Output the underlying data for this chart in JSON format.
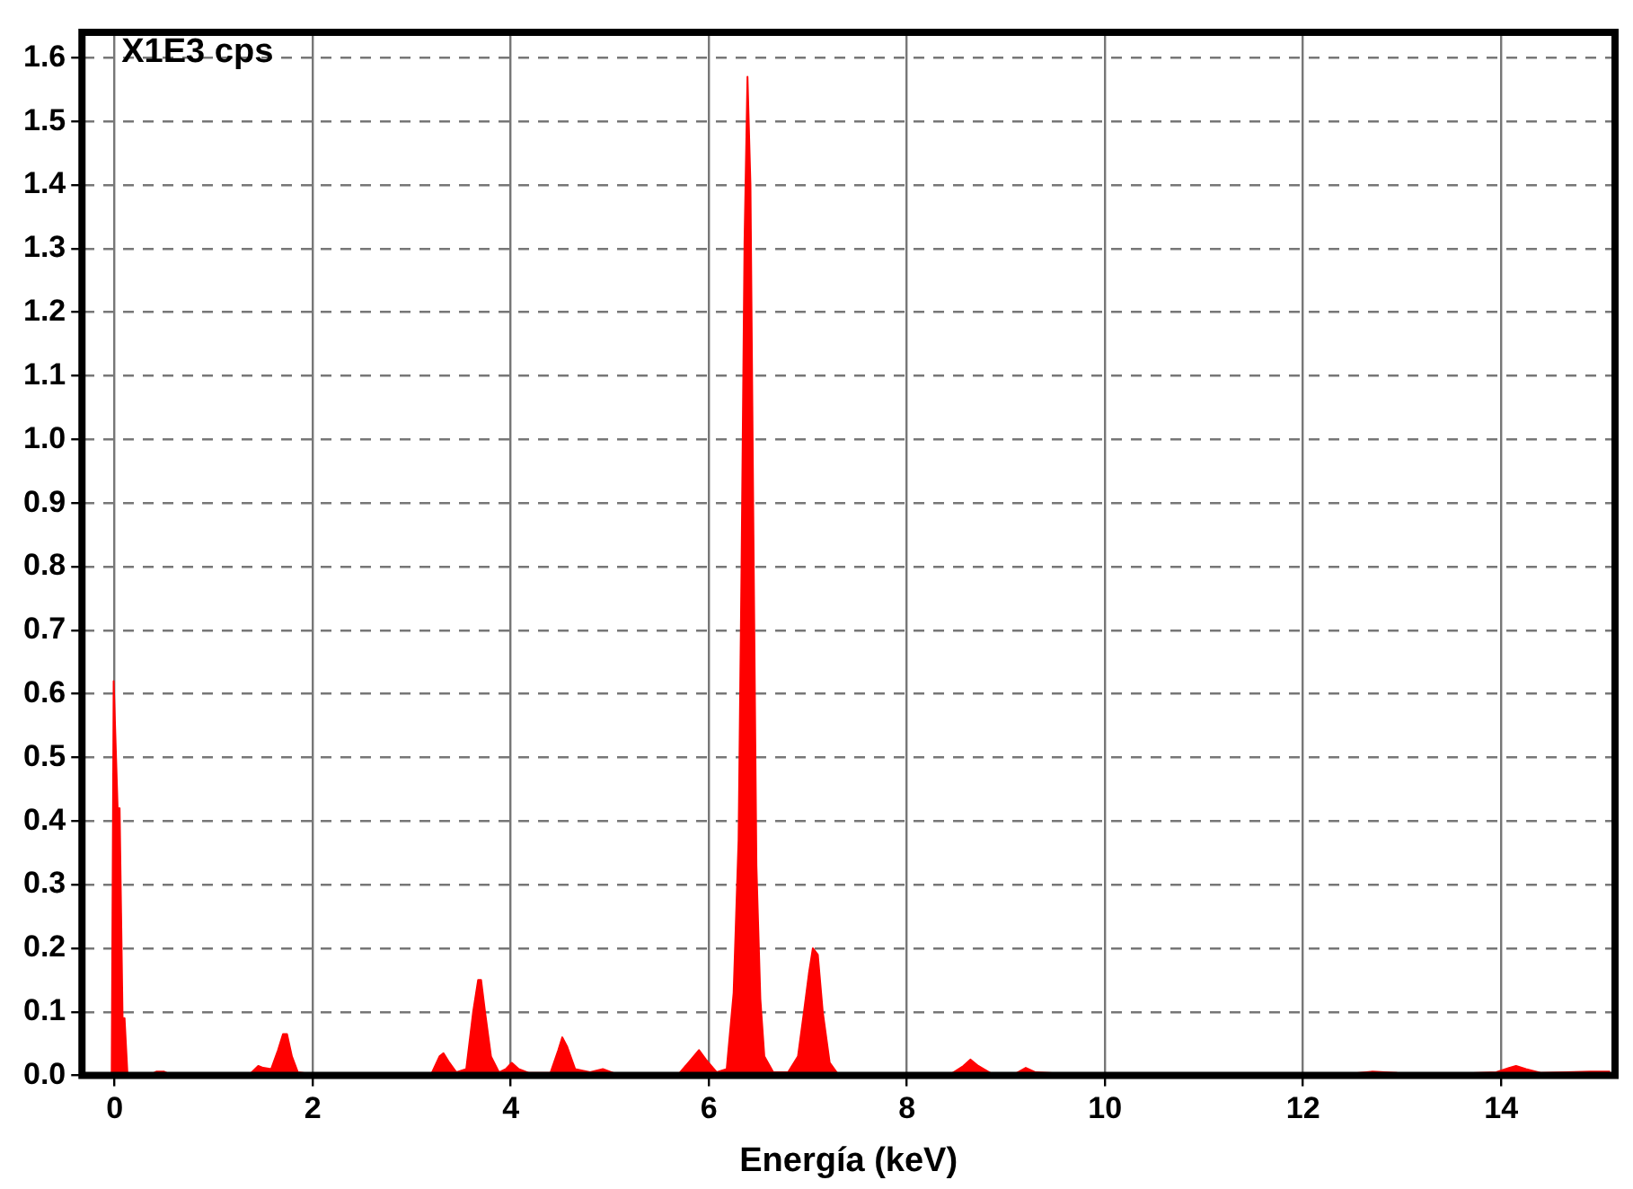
{
  "chart_data": {
    "type": "area",
    "xlabel": "Energía (keV)",
    "annotations": [
      "X1E3 cps"
    ],
    "x": [
      -0.03,
      -0.01,
      0.0,
      0.03,
      0.05,
      0.08,
      0.1,
      0.13,
      0.35,
      0.42,
      0.5,
      0.58,
      1.35,
      1.45,
      1.5,
      1.58,
      1.65,
      1.7,
      1.74,
      1.79,
      1.85,
      1.95,
      3.2,
      3.28,
      3.32,
      3.38,
      3.45,
      3.55,
      3.62,
      3.67,
      3.7,
      3.74,
      3.8,
      3.88,
      3.95,
      4.01,
      4.08,
      4.18,
      4.4,
      4.48,
      4.52,
      4.57,
      4.65,
      4.8,
      4.93,
      5.05,
      5.7,
      5.82,
      5.9,
      5.97,
      6.08,
      6.18,
      6.25,
      6.3,
      6.33,
      6.36,
      6.39,
      6.42,
      6.45,
      6.48,
      6.52,
      6.56,
      6.65,
      6.8,
      6.9,
      6.96,
      7.01,
      7.05,
      7.1,
      7.15,
      7.22,
      7.3,
      8.45,
      8.57,
      8.64,
      8.72,
      8.85,
      9.1,
      9.2,
      9.3,
      9.55,
      12.5,
      12.7,
      12.95,
      13.2,
      13.6,
      13.95,
      14.08,
      14.15,
      14.25,
      14.4,
      14.9,
      15.1
    ],
    "values": [
      0,
      0.62,
      0.62,
      0.42,
      0.42,
      0.09,
      0.09,
      0,
      0,
      0.006,
      0.006,
      0,
      0,
      0.015,
      0.012,
      0.01,
      0.04,
      0.065,
      0.065,
      0.03,
      0.005,
      0.003,
      0.003,
      0.03,
      0.035,
      0.02,
      0.005,
      0.01,
      0.1,
      0.15,
      0.15,
      0.1,
      0.03,
      0.005,
      0.01,
      0.02,
      0.01,
      0.004,
      0.004,
      0.04,
      0.06,
      0.045,
      0.01,
      0.005,
      0.01,
      0.003,
      0.003,
      0.025,
      0.04,
      0.025,
      0.005,
      0.01,
      0.13,
      0.37,
      0.8,
      1.31,
      1.57,
      1.4,
      0.85,
      0.33,
      0.12,
      0.03,
      0.005,
      0.005,
      0.03,
      0.1,
      0.16,
      0.2,
      0.19,
      0.1,
      0.02,
      0.003,
      0.003,
      0.015,
      0.025,
      0.015,
      0.003,
      0.003,
      0.012,
      0.005,
      0.003,
      0.003,
      0.006,
      0.004,
      0.003,
      0.003,
      0.005,
      0.012,
      0.015,
      0.01,
      0.004,
      0.006,
      0.006
    ],
    "color": "#ff0000",
    "xlim": [
      -0.33,
      15.15
    ],
    "ylim": [
      0,
      1.64
    ],
    "xticks": [
      0,
      2,
      4,
      6,
      8,
      10,
      12,
      14
    ],
    "yticks": [
      {
        "value": 0,
        "label": "0.0"
      },
      0.1,
      0.2,
      0.3,
      0.4,
      0.5,
      0.6,
      0.7,
      0.8,
      0.9,
      {
        "value": 1,
        "label": "1.0"
      },
      1.1,
      1.2,
      1.3,
      1.4,
      1.5,
      1.6
    ],
    "grid": true,
    "legend": false
  }
}
